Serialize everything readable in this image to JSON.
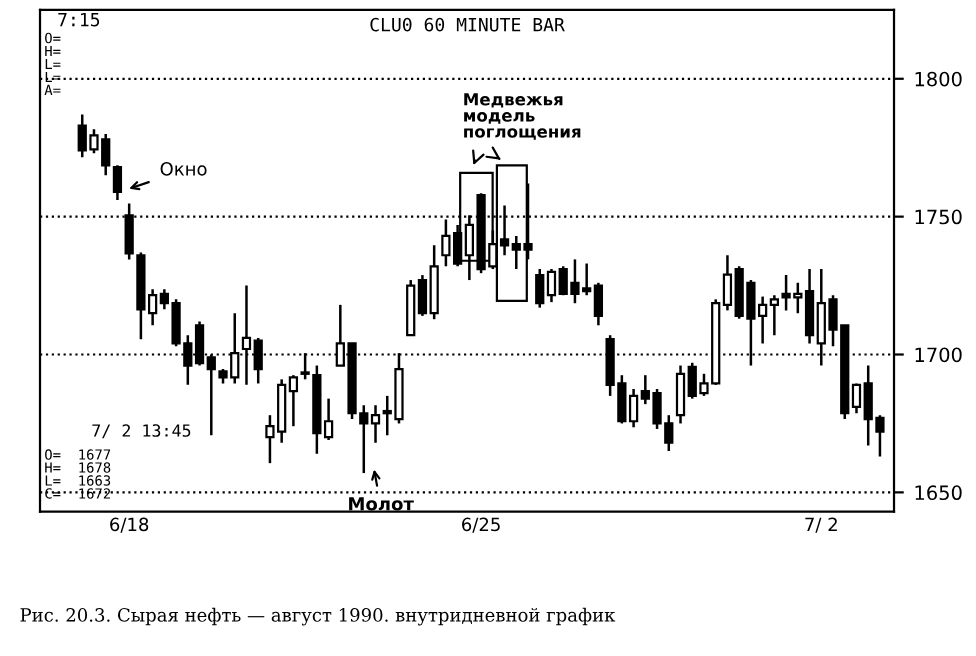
{
  "chart_data": {
    "type": "candlestick",
    "title": "CLU0 60 MINUTE BAR",
    "categories": [
      null,
      null,
      null,
      null,
      "6/18",
      null,
      null,
      null,
      null,
      null,
      null,
      null,
      null,
      null,
      null,
      null,
      null,
      null,
      null,
      null,
      null,
      null,
      null,
      null,
      null,
      null,
      null,
      null,
      null,
      null,
      null,
      null,
      null,
      null,
      "6/25",
      null,
      null,
      null,
      null,
      null,
      null,
      null,
      null,
      null,
      null,
      null,
      null,
      null,
      null,
      null,
      null,
      null,
      null,
      null,
      null,
      null,
      null,
      null,
      null,
      null,
      null,
      null,
      null,
      "7/ 2",
      null,
      null,
      null,
      null,
      null
    ],
    "ohlc": [
      [
        1783,
        1787,
        1771.5,
        1774
      ],
      [
        1774.4,
        1781.7,
        1773,
        1779.5
      ],
      [
        1778,
        1780,
        1765,
        1768.6
      ],
      [
        1768,
        1768.6,
        1756,
        1759
      ],
      [
        1750.5,
        1754.8,
        1734.5,
        1736.7
      ],
      [
        1736,
        1737,
        1705.5,
        1716.4
      ],
      [
        1715,
        1723.7,
        1710.6,
        1721.5
      ],
      [
        1722,
        1723.7,
        1716.4,
        1718.6
      ],
      [
        1718.6,
        1720,
        1703,
        1704
      ],
      [
        1704,
        1707,
        1689,
        1696
      ],
      [
        1710.6,
        1712,
        1696,
        1696.9
      ],
      [
        1699,
        1700,
        1670.7,
        1694.7
      ],
      [
        1693.9,
        1694.7,
        1689.5,
        1691.7
      ],
      [
        1691.7,
        1715,
        1689.5,
        1700.5
      ],
      [
        1702,
        1725,
        1689,
        1706
      ],
      [
        1705,
        1706,
        1689.5,
        1694.7
      ],
      [
        1670,
        1678,
        1660.6,
        1674
      ],
      [
        1672,
        1691,
        1668,
        1689
      ],
      [
        1686.7,
        1692.5,
        1674,
        1691.7
      ],
      [
        1693,
        1700.5,
        1691,
        1693.5
      ],
      [
        1692.5,
        1696,
        1664,
        1671.5
      ],
      [
        1670,
        1684,
        1669,
        1675.8
      ],
      [
        1696,
        1718,
        1696,
        1704
      ],
      [
        1704,
        1704,
        1676.6,
        1678.7
      ],
      [
        1678.7,
        1681.6,
        1657,
        1675
      ],
      [
        1675,
        1681.6,
        1668,
        1678
      ],
      [
        1678.7,
        1685,
        1670.7,
        1679.5
      ],
      [
        1676.6,
        1700.5,
        1675,
        1694.7
      ],
      [
        1707,
        1727,
        1707,
        1725
      ],
      [
        1727,
        1728.8,
        1714,
        1715
      ],
      [
        1715,
        1739.6,
        1712.8,
        1732
      ],
      [
        1736,
        1749,
        1732,
        1743
      ],
      [
        1744,
        1747,
        1732,
        1733
      ],
      [
        1736,
        1750.5,
        1727,
        1747
      ],
      [
        1757.8,
        1758.5,
        1729.5,
        1731
      ],
      [
        1732,
        1745,
        1731,
        1740
      ],
      [
        1741.8,
        1754,
        1736,
        1739.6
      ],
      [
        1740,
        1743,
        1731,
        1738
      ],
      [
        1740,
        1762,
        1734.5,
        1738
      ],
      [
        1728.8,
        1731,
        1717,
        1718.6
      ],
      [
        1721.5,
        1731,
        1719,
        1730
      ],
      [
        1731,
        1732,
        1721.5,
        1722
      ],
      [
        1726,
        1734.5,
        1718.6,
        1722
      ],
      [
        1724,
        1733,
        1721.5,
        1723
      ],
      [
        1725,
        1726,
        1710.6,
        1714
      ],
      [
        1705.6,
        1707,
        1685,
        1689
      ],
      [
        1689.5,
        1692.5,
        1675,
        1675.8
      ],
      [
        1675.8,
        1687.5,
        1673.6,
        1685
      ],
      [
        1686.7,
        1692.5,
        1682,
        1684
      ],
      [
        1686,
        1687.5,
        1673,
        1675
      ],
      [
        1675,
        1678,
        1665,
        1668
      ],
      [
        1678,
        1696,
        1675,
        1693
      ],
      [
        1695.5,
        1697,
        1684,
        1685
      ],
      [
        1686,
        1693,
        1685,
        1689.5
      ],
      [
        1689.5,
        1720,
        1689,
        1718.6
      ],
      [
        1718,
        1736,
        1716,
        1729
      ],
      [
        1731,
        1732,
        1713,
        1714
      ],
      [
        1726,
        1727,
        1696,
        1713
      ],
      [
        1714,
        1721,
        1704,
        1718
      ],
      [
        1718,
        1721.5,
        1707,
        1720
      ],
      [
        1722,
        1728.8,
        1716,
        1720.7
      ],
      [
        1720.7,
        1726,
        1715,
        1722
      ],
      [
        1723,
        1731,
        1704,
        1707
      ],
      [
        1704,
        1731,
        1696,
        1718.6
      ],
      [
        1720,
        1721.5,
        1703,
        1709
      ],
      [
        1710.6,
        1710.6,
        1676.6,
        1678.7
      ],
      [
        1681,
        1689.5,
        1678.7,
        1689
      ],
      [
        1689.5,
        1696,
        1667,
        1676.6
      ],
      [
        1677,
        1678,
        1663,
        1672
      ]
    ],
    "ylim": [
      1643,
      1825
    ],
    "yticks": [
      1650,
      1700,
      1750,
      1800
    ],
    "grid": "y",
    "line_style": "dotted",
    "annotations": [
      "7:15",
      "O=\nH=\nL=\nL=\nA=",
      "7/ 2 13:45",
      "O=  1677\nH=  1678\nL=  1663\nC=  1672",
      "Окно",
      "Медвежья\nмодель\nпоглощения",
      "Молот",
      "Рис. 20.3. Сырая нефть — август 1990. внутридневной график"
    ]
  }
}
